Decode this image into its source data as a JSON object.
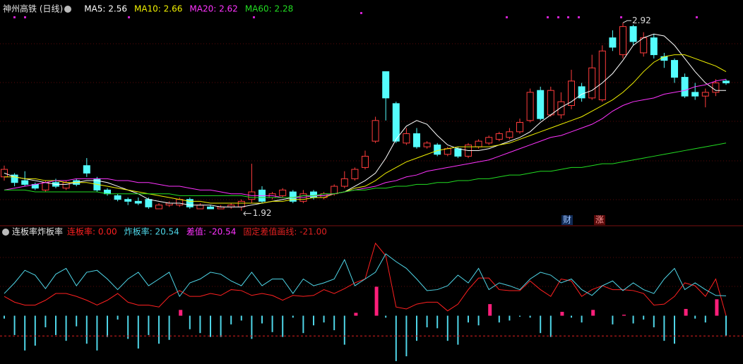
{
  "chart_data": [
    {
      "type": "candlestick",
      "title": "神州高铁 (日线)",
      "open": [
        2.1,
        2.11,
        2.08,
        2.06,
        2.03,
        2.07,
        2.04,
        2.08,
        2.16,
        2.09,
        2.03,
        2.0,
        1.98,
        1.97,
        1.98,
        1.93,
        1.95,
        1.95,
        1.98,
        1.93,
        1.94,
        1.93,
        1.94,
        1.94,
        1.98,
        2.03,
        1.99,
        2.0,
        2.02,
        1.97,
        2.02,
        1.99,
        2.01,
        2.05,
        2.09,
        2.15,
        2.29,
        2.66,
        2.49,
        2.28,
        2.33,
        2.26,
        2.27,
        2.22,
        2.25,
        2.21,
        2.26,
        2.28,
        2.3,
        2.31,
        2.34,
        2.4,
        2.56,
        2.43,
        2.43,
        2.48,
        2.58,
        2.52,
        2.51,
        2.84,
        2.75,
        2.9,
        2.76,
        2.84,
        2.74,
        2.72,
        2.63,
        2.55,
        2.53,
        2.55,
        2.61
      ],
      "high": [
        2.16,
        2.12,
        2.13,
        2.07,
        2.08,
        2.09,
        2.08,
        2.09,
        2.2,
        2.1,
        2.04,
        2.01,
        1.99,
        1.99,
        1.99,
        1.96,
        1.97,
        1.99,
        1.99,
        1.96,
        1.95,
        1.95,
        1.96,
        1.98,
        2.17,
        2.05,
        2.02,
        2.04,
        2.03,
        2.03,
        2.03,
        2.02,
        2.06,
        2.13,
        2.15,
        2.24,
        2.42,
        2.66,
        2.5,
        2.36,
        2.36,
        2.29,
        2.28,
        2.26,
        2.26,
        2.28,
        2.3,
        2.32,
        2.34,
        2.36,
        2.41,
        2.57,
        2.58,
        2.58,
        2.55,
        2.67,
        2.6,
        2.75,
        2.8,
        2.88,
        2.92,
        2.91,
        2.87,
        2.86,
        2.76,
        2.73,
        2.65,
        2.6,
        2.57,
        2.62,
        2.62
      ],
      "low": [
        2.08,
        2.05,
        2.05,
        2.03,
        2.02,
        2.04,
        2.03,
        2.05,
        2.1,
        2.02,
        2.0,
        1.97,
        1.95,
        1.95,
        1.93,
        1.93,
        1.94,
        1.94,
        1.93,
        1.93,
        1.93,
        1.93,
        1.93,
        1.92,
        1.96,
        1.96,
        1.98,
        1.99,
        1.96,
        1.96,
        1.98,
        1.98,
        2.0,
        2.04,
        2.08,
        2.14,
        2.28,
        2.4,
        2.28,
        2.27,
        2.25,
        2.25,
        2.21,
        2.21,
        2.2,
        2.2,
        2.25,
        2.27,
        2.29,
        2.3,
        2.33,
        2.39,
        2.4,
        2.42,
        2.41,
        2.46,
        2.5,
        2.51,
        2.5,
        2.77,
        2.73,
        2.8,
        2.74,
        2.73,
        2.68,
        2.6,
        2.52,
        2.51,
        2.47,
        2.53,
        2.59
      ],
      "close": [
        2.14,
        2.07,
        2.06,
        2.04,
        2.07,
        2.05,
        2.07,
        2.06,
        2.12,
        2.03,
        2.01,
        1.98,
        1.97,
        1.96,
        1.94,
        1.95,
        1.96,
        1.98,
        1.94,
        1.95,
        1.93,
        1.94,
        1.95,
        1.97,
        2.02,
        1.97,
        2.01,
        2.03,
        1.97,
        2.01,
        1.99,
        2.01,
        2.05,
        2.09,
        2.14,
        2.21,
        2.4,
        2.52,
        2.29,
        2.33,
        2.26,
        2.28,
        2.22,
        2.25,
        2.21,
        2.27,
        2.29,
        2.31,
        2.33,
        2.34,
        2.39,
        2.55,
        2.41,
        2.56,
        2.5,
        2.61,
        2.52,
        2.68,
        2.77,
        2.79,
        2.9,
        2.82,
        2.84,
        2.75,
        2.72,
        2.63,
        2.53,
        2.53,
        2.55,
        2.6,
        2.6
      ],
      "up_color": "#ff3c3c",
      "down_color": "#54fcfc",
      "ylim": [
        1.87,
        3.0
      ],
      "max_label": "2.92",
      "min_label": "1.92",
      "series": [
        {
          "name": "MA5: 2.56",
          "color": "#ffffff",
          "values": [
            2.12,
            2.1,
            2.09,
            2.08,
            2.07,
            2.06,
            2.06,
            2.07,
            2.08,
            2.08,
            2.07,
            2.05,
            2.03,
            2.01,
            1.98,
            1.97,
            1.96,
            1.96,
            1.95,
            1.95,
            1.95,
            1.94,
            1.94,
            1.94,
            1.95,
            1.96,
            1.97,
            1.98,
            1.99,
            2.0,
            2.0,
            2.0,
            2.01,
            2.02,
            2.05,
            2.08,
            2.12,
            2.2,
            2.3,
            2.37,
            2.4,
            2.38,
            2.32,
            2.27,
            2.25,
            2.24,
            2.24,
            2.25,
            2.27,
            2.29,
            2.31,
            2.34,
            2.39,
            2.43,
            2.47,
            2.5,
            2.54,
            2.56,
            2.6,
            2.65,
            2.72,
            2.8,
            2.84,
            2.86,
            2.85,
            2.8,
            2.73,
            2.66,
            2.6,
            2.56,
            2.56
          ]
        },
        {
          "name": "MA10: 2.66",
          "color": "#f0f000",
          "values": [
            2.1,
            2.1,
            2.09,
            2.09,
            2.08,
            2.08,
            2.07,
            2.07,
            2.07,
            2.06,
            2.05,
            2.04,
            2.03,
            2.02,
            2.01,
            2.0,
            1.99,
            1.98,
            1.97,
            1.97,
            1.96,
            1.96,
            1.96,
            1.96,
            1.96,
            1.96,
            1.97,
            1.97,
            1.98,
            1.98,
            1.99,
            1.99,
            2.01,
            2.02,
            2.04,
            2.05,
            2.08,
            2.12,
            2.15,
            2.18,
            2.2,
            2.22,
            2.24,
            2.25,
            2.26,
            2.26,
            2.26,
            2.26,
            2.27,
            2.28,
            2.3,
            2.32,
            2.34,
            2.36,
            2.38,
            2.4,
            2.42,
            2.45,
            2.48,
            2.51,
            2.55,
            2.6,
            2.66,
            2.71,
            2.74,
            2.75,
            2.75,
            2.73,
            2.71,
            2.69,
            2.66
          ]
        },
        {
          "name": "MA20: 2.62",
          "color": "#ff33ff",
          "values": [
            2.03,
            2.04,
            2.05,
            2.06,
            2.07,
            2.08,
            2.08,
            2.09,
            2.09,
            2.09,
            2.09,
            2.08,
            2.08,
            2.07,
            2.07,
            2.06,
            2.05,
            2.05,
            2.04,
            2.03,
            2.03,
            2.02,
            2.01,
            2.01,
            2.0,
            2.0,
            2.0,
            1.99,
            1.99,
            1.99,
            2.0,
            2.0,
            2.01,
            2.02,
            2.03,
            2.04,
            2.05,
            2.07,
            2.08,
            2.1,
            2.11,
            2.13,
            2.14,
            2.15,
            2.16,
            2.17,
            2.18,
            2.19,
            2.21,
            2.23,
            2.25,
            2.27,
            2.29,
            2.31,
            2.32,
            2.34,
            2.36,
            2.38,
            2.41,
            2.45,
            2.48,
            2.5,
            2.51,
            2.52,
            2.54,
            2.55,
            2.56,
            2.58,
            2.59,
            2.61,
            2.62
          ]
        },
        {
          "name": "MA60: 2.28",
          "color": "#22dd22",
          "values": [
            2.03,
            2.03,
            2.03,
            2.02,
            2.02,
            2.02,
            2.02,
            2.02,
            2.02,
            2.02,
            2.01,
            2.01,
            2.01,
            2.01,
            2.01,
            2.01,
            2.01,
            2.0,
            2.0,
            2.0,
            2.0,
            2.0,
            2.0,
            2.0,
            1.99,
            1.99,
            1.99,
            1.99,
            1.99,
            2.0,
            2.0,
            2.01,
            2.01,
            2.02,
            2.03,
            2.03,
            2.04,
            2.04,
            2.05,
            2.05,
            2.06,
            2.06,
            2.07,
            2.07,
            2.08,
            2.08,
            2.09,
            2.09,
            2.1,
            2.11,
            2.11,
            2.12,
            2.13,
            2.13,
            2.14,
            2.15,
            2.15,
            2.16,
            2.17,
            2.17,
            2.18,
            2.19,
            2.2,
            2.21,
            2.22,
            2.23,
            2.24,
            2.25,
            2.26,
            2.27,
            2.28
          ]
        }
      ],
      "annotations": [
        "财",
        "涨"
      ]
    },
    {
      "type": "indicator",
      "title": "连板率炸板率",
      "ylim": [
        -50,
        80
      ],
      "series": [
        {
          "name": "连板率: 0.00",
          "type": "line",
          "color": "#ff2020",
          "values": [
            20,
            14,
            11,
            11,
            16,
            23,
            23,
            20,
            16,
            11,
            16,
            23,
            14,
            11,
            11,
            9,
            20,
            26,
            20,
            20,
            23,
            21,
            27,
            26,
            21,
            23,
            21,
            16,
            21,
            20,
            21,
            27,
            23,
            28,
            34,
            38,
            75,
            62,
            9,
            7,
            12,
            14,
            14,
            5,
            12,
            27,
            39,
            39,
            27,
            26,
            26,
            36,
            27,
            20,
            38,
            36,
            20,
            27,
            31,
            27,
            27,
            26,
            23,
            11,
            12,
            20,
            34,
            31,
            20,
            38,
            0
          ]
        },
        {
          "name": "炸板率: 20.54",
          "type": "line",
          "color": "#4fd6e8",
          "values": [
            23,
            34,
            47,
            42,
            28,
            43,
            49,
            31,
            45,
            47,
            38,
            27,
            38,
            45,
            31,
            38,
            45,
            20,
            34,
            38,
            45,
            43,
            36,
            31,
            45,
            31,
            38,
            38,
            23,
            38,
            31,
            34,
            38,
            58,
            31,
            38,
            45,
            64,
            56,
            49,
            38,
            26,
            27,
            31,
            42,
            34,
            49,
            27,
            34,
            31,
            27,
            38,
            45,
            42,
            34,
            38,
            27,
            21,
            31,
            36,
            26,
            34,
            27,
            23,
            38,
            49,
            27,
            34,
            27,
            21,
            20.54
          ]
        },
        {
          "name": "差值: -20.54",
          "type": "bar",
          "color": "#ff1f7a",
          "negative_color": "#4fd6e8",
          "legend_color": "#ff33ff",
          "values": [
            -3,
            -20,
            -36,
            -31,
            -12,
            -20,
            -26,
            -11,
            -29,
            -36,
            -22,
            -4,
            -24,
            -34,
            -20,
            -29,
            -25,
            6,
            -14,
            -18,
            -22,
            -22,
            -9,
            -5,
            -24,
            -8,
            -17,
            -22,
            -2,
            -18,
            -10,
            -7,
            -15,
            -30,
            3,
            0,
            30,
            -2,
            -47,
            -42,
            -26,
            -12,
            -13,
            -26,
            -30,
            -7,
            -10,
            12,
            -7,
            -5,
            -1,
            -2,
            -18,
            -22,
            4,
            -2,
            -7,
            6,
            0,
            -9,
            1,
            -8,
            -4,
            -12,
            -26,
            -29,
            7,
            -3,
            -7,
            17,
            -20.54
          ]
        },
        {
          "name": "固定差值画线: -21.00",
          "type": "hline",
          "color": "#e02020",
          "value": -21
        }
      ]
    }
  ]
}
